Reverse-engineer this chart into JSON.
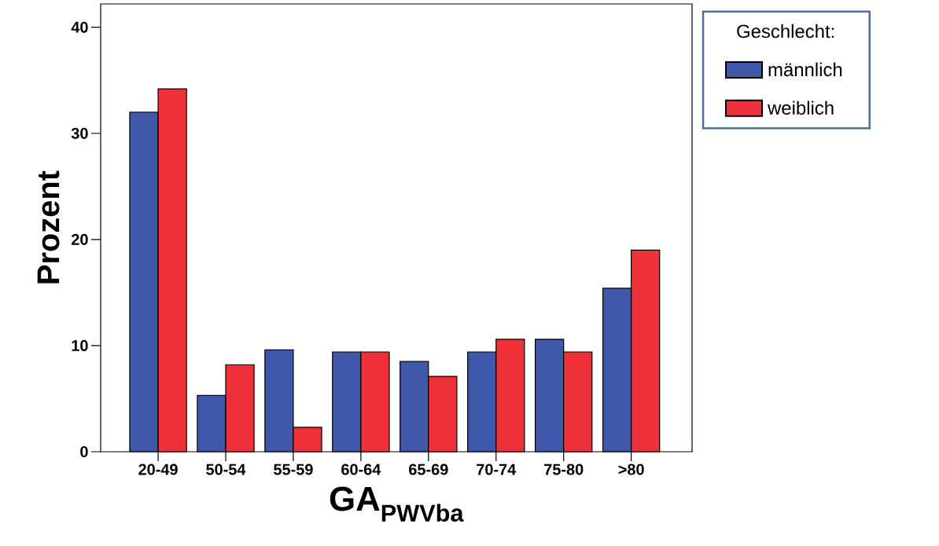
{
  "chart_data": {
    "type": "bar",
    "xlabel": "GA$_{PWVba}$",
    "ylabel": "Prozent",
    "legend_title": "Geschlecht:",
    "categories": [
      "20-49",
      "50-54",
      "55-59",
      "60-64",
      "65-69",
      "70-74",
      "75-80",
      ">80"
    ],
    "series": [
      {
        "name": "männlich",
        "color": "#3f58a9",
        "values": [
          32.0,
          5.3,
          9.6,
          9.4,
          8.5,
          9.4,
          10.6,
          15.4
        ]
      },
      {
        "name": "weiblich",
        "color": "#ef323a",
        "values": [
          34.2,
          8.2,
          2.3,
          9.4,
          7.1,
          10.6,
          9.4,
          19.0
        ]
      }
    ],
    "ylim": [
      0,
      42.2
    ],
    "yticks": [
      0,
      10,
      20,
      30,
      40
    ],
    "grid": false,
    "legend": "top right"
  }
}
